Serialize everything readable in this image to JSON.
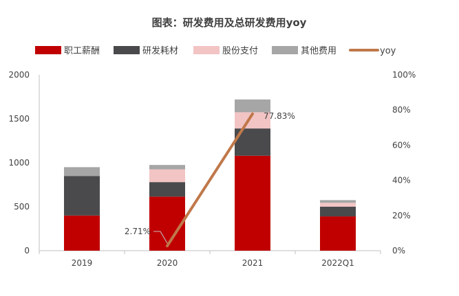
{
  "chart_data": {
    "type": "bar",
    "title": "图表：研发费用及总研发费用yoy",
    "categories": [
      "2019",
      "2020",
      "2021",
      "2022Q1"
    ],
    "series": [
      {
        "name": "职工薪酬",
        "type": "bar",
        "stack": "total",
        "axis": "left",
        "color": "#c00000",
        "values": [
          400,
          615,
          1080,
          390
        ]
      },
      {
        "name": "研发耗材",
        "type": "bar",
        "stack": "total",
        "axis": "left",
        "color": "#4a4a4c",
        "values": [
          450,
          165,
          310,
          110
        ]
      },
      {
        "name": "股份支付",
        "type": "bar",
        "stack": "total",
        "axis": "left",
        "color": "#f2c4c4",
        "values": [
          0,
          145,
          185,
          45
        ]
      },
      {
        "name": "其他费用",
        "type": "bar",
        "stack": "total",
        "axis": "left",
        "color": "#a6a6a6",
        "values": [
          100,
          50,
          145,
          30
        ]
      },
      {
        "name": "yoy",
        "type": "line",
        "axis": "right",
        "color": "#c0784a",
        "x": [
          "2020",
          "2021"
        ],
        "values": [
          2.71,
          77.83
        ]
      }
    ],
    "y_left": {
      "min": 0,
      "max": 2000,
      "ticks": [
        0,
        500,
        1000,
        1500,
        2000
      ],
      "tick_labels": [
        "0",
        "500",
        "1000",
        "1500",
        "2000"
      ]
    },
    "y_right": {
      "min": 0,
      "max": 100,
      "ticks": [
        0,
        20,
        40,
        60,
        80,
        100
      ],
      "tick_labels": [
        "0%",
        "20%",
        "40%",
        "60%",
        "80%",
        "100%"
      ]
    },
    "annotations": [
      {
        "category": "2020",
        "series": "yoy",
        "text": "2.71%"
      },
      {
        "category": "2021",
        "series": "yoy",
        "text": "77.83%"
      }
    ],
    "legend": {
      "position": "top"
    },
    "grid": false
  }
}
